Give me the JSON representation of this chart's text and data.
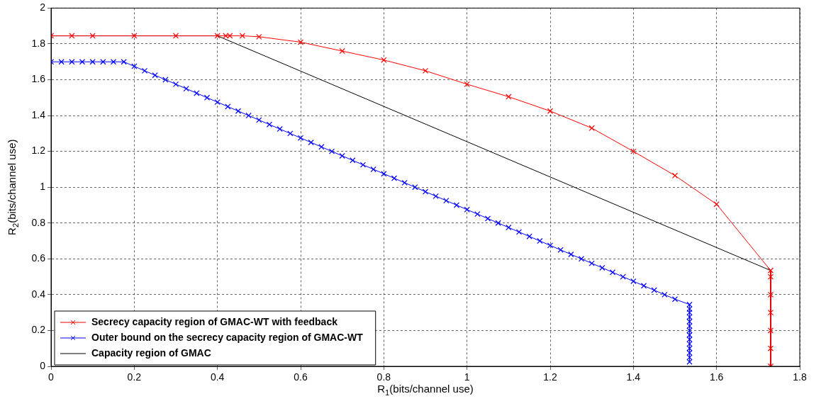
{
  "chart_data": {
    "type": "line",
    "xlabel": "R$_{1}$(bits/channel use)",
    "ylabel": "R$_{2}$(bits/channel use)",
    "xlim": [
      0,
      1.8
    ],
    "xticks": [
      0,
      0.2,
      0.4,
      0.6,
      0.8,
      1,
      1.2,
      1.4,
      1.6,
      1.8
    ],
    "ylim": [
      0,
      2
    ],
    "yticks": [
      0,
      0.2,
      0.4,
      0.6,
      0.8,
      1,
      1.2,
      1.4,
      1.6,
      1.8,
      2
    ],
    "grid": true,
    "legend": "bottom left",
    "line_style": "solid",
    "series": [
      {
        "name": "Secrecy capacity region of GMAC-WT with feedback",
        "color": "#ff0000",
        "marker": "cross",
        "x": [
          0,
          0.05,
          0.1,
          0.2,
          0.3,
          0.4,
          0.42,
          0.43,
          0.46,
          0.5,
          0.6,
          0.7,
          0.8,
          0.9,
          1.0,
          1.1,
          1.2,
          1.3,
          1.4,
          1.5,
          1.6,
          1.73,
          1.73,
          1.73,
          1.73,
          1.73,
          1.73,
          1.73
        ],
        "values": [
          1.845,
          1.845,
          1.845,
          1.845,
          1.845,
          1.845,
          1.845,
          1.845,
          1.845,
          1.84,
          1.81,
          1.76,
          1.71,
          1.65,
          1.575,
          1.505,
          1.425,
          1.33,
          1.2,
          1.065,
          0.905,
          0.535,
          0.5,
          0.4,
          0.3,
          0.2,
          0.1,
          0
        ]
      },
      {
        "name": "Outer bound on the secrecy capacity region of GMAC-WT",
        "color": "#0000ff",
        "marker": "cross",
        "x": [
          0,
          0.025,
          0.05,
          0.075,
          0.1,
          0.125,
          0.15,
          0.175,
          0.2,
          0.225,
          0.25,
          0.275,
          0.3,
          0.325,
          0.35,
          0.375,
          0.4,
          0.425,
          0.45,
          0.475,
          0.5,
          0.525,
          0.55,
          0.575,
          0.6,
          0.625,
          0.65,
          0.675,
          0.7,
          0.725,
          0.75,
          0.775,
          0.8,
          0.825,
          0.85,
          0.875,
          0.9,
          0.925,
          0.95,
          0.975,
          1.0,
          1.025,
          1.05,
          1.075,
          1.1,
          1.125,
          1.15,
          1.175,
          1.2,
          1.225,
          1.25,
          1.275,
          1.3,
          1.325,
          1.35,
          1.375,
          1.4,
          1.425,
          1.45,
          1.475,
          1.5,
          1.535,
          1.535,
          1.535,
          1.535,
          1.535,
          1.535,
          1.535,
          1.535,
          1.535,
          1.535,
          1.535,
          1.535,
          1.535,
          1.535
        ],
        "values": [
          1.7,
          1.7,
          1.7,
          1.7,
          1.7,
          1.7,
          1.7,
          1.7,
          1.675,
          1.65,
          1.625,
          1.6,
          1.575,
          1.55,
          1.525,
          1.5,
          1.475,
          1.45,
          1.425,
          1.4,
          1.375,
          1.35,
          1.325,
          1.3,
          1.275,
          1.25,
          1.225,
          1.2,
          1.175,
          1.15,
          1.125,
          1.1,
          1.075,
          1.05,
          1.025,
          1.0,
          0.975,
          0.95,
          0.925,
          0.9,
          0.875,
          0.85,
          0.825,
          0.8,
          0.775,
          0.75,
          0.725,
          0.7,
          0.675,
          0.65,
          0.625,
          0.6,
          0.575,
          0.55,
          0.525,
          0.5,
          0.475,
          0.45,
          0.425,
          0.4,
          0.375,
          0.345,
          0.32,
          0.3,
          0.275,
          0.25,
          0.225,
          0.2,
          0.175,
          0.15,
          0.125,
          0.1,
          0.075,
          0.05,
          0.025
        ]
      },
      {
        "name": "Capacity region of GMAC",
        "color": "#000000",
        "marker": "none",
        "x": [
          0,
          0.4,
          1.73,
          1.73
        ],
        "values": [
          1.845,
          1.845,
          0.535,
          0
        ]
      }
    ]
  }
}
